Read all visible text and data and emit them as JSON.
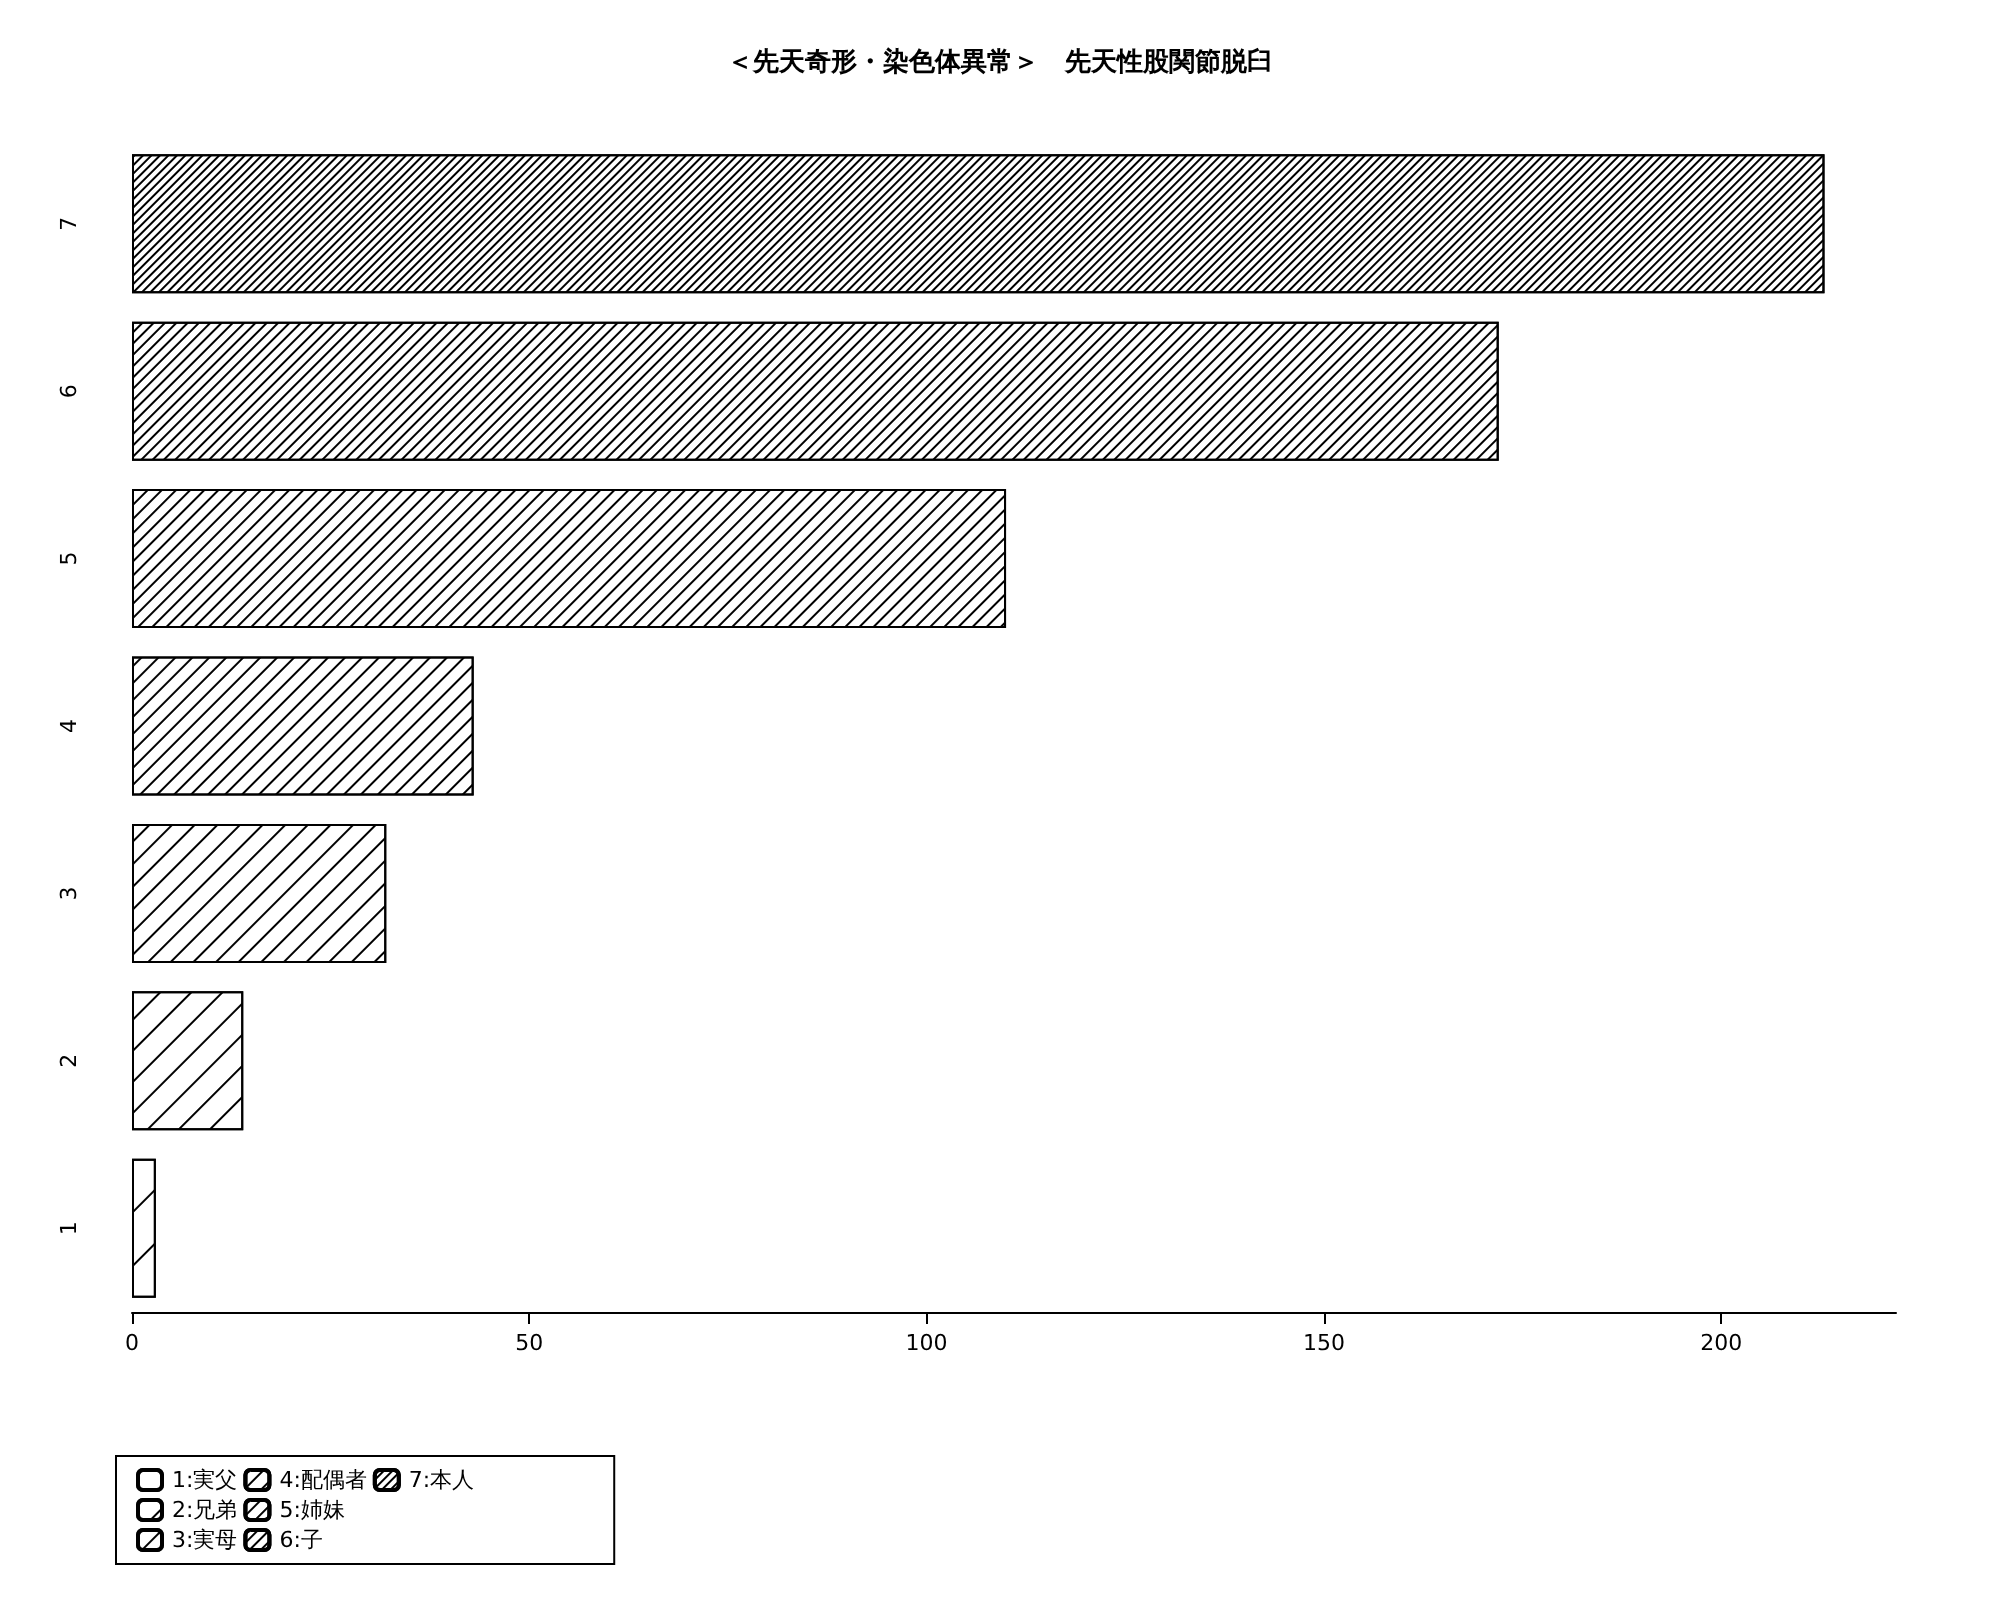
{
  "chart_data": {
    "type": "bar",
    "title": "＜先天奇形・染色体異常＞　先天性股関節脱臼",
    "orientation": "horizontal",
    "stacked": true,
    "grid": false,
    "legend": "bottom left",
    "categories": [
      "7",
      "6",
      "5",
      "4",
      "3",
      "2",
      "1"
    ],
    "xlim": [
      0,
      222
    ],
    "xticks": [
      0,
      50,
      100,
      150,
      200
    ],
    "series": [
      {
        "name": "1:実父",
        "color": "#000000",
        "values": [
          null,
          null,
          null,
          null,
          null,
          null,
          3
        ]
      },
      {
        "name": "2:兄弟",
        "color": "#000000",
        "values": [
          null,
          null,
          null,
          null,
          null,
          14,
          null
        ]
      },
      {
        "name": "3:実母",
        "color": "#000000",
        "values": [
          null,
          null,
          null,
          null,
          32,
          null,
          null
        ]
      },
      {
        "name": "4:配偶者",
        "color": "#000000",
        "values": [
          null,
          null,
          null,
          43,
          null,
          null,
          null
        ]
      },
      {
        "name": "5:姉妹",
        "color": "#000000",
        "values": [
          null,
          null,
          110,
          null,
          null,
          null,
          null
        ]
      },
      {
        "name": "6:子",
        "color": "#000000",
        "values": [
          null,
          172,
          null,
          null,
          null,
          null,
          null
        ]
      },
      {
        "name": "7:本人",
        "color": "#000000",
        "values": [
          213,
          null,
          null,
          null,
          null,
          null,
          null
        ]
      }
    ]
  }
}
